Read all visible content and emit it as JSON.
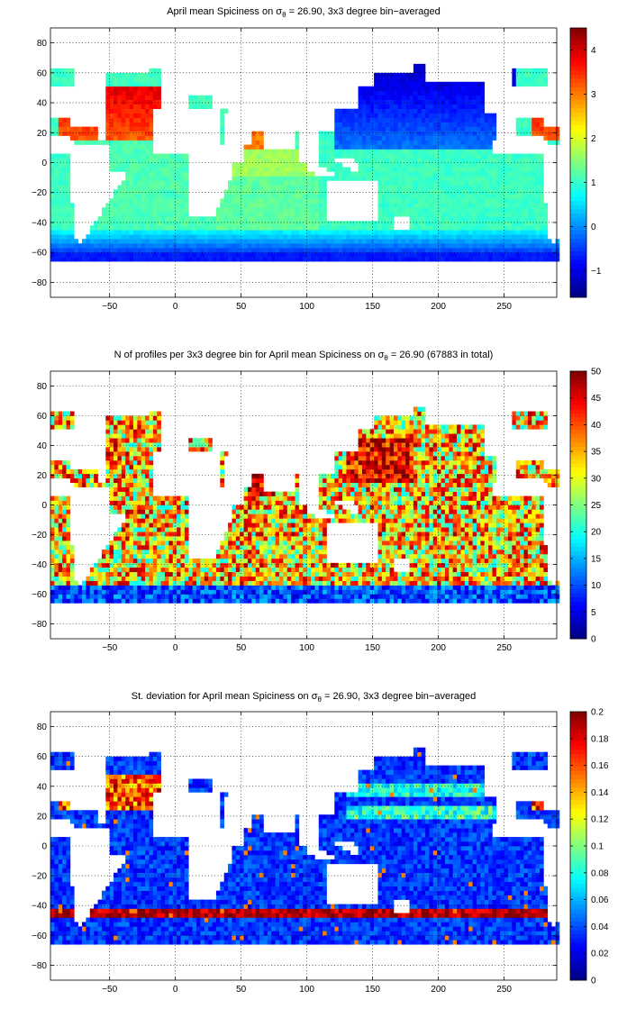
{
  "colormap": "jet",
  "colors": {
    "land": "#ffffff",
    "grid": "#000000",
    "frame": "#000000",
    "background": "#ffffff"
  },
  "chart_data": [
    {
      "type": "heatmap",
      "title_prefix": "April mean Spiciness on ",
      "title_symbol": "σ",
      "title_subscript": "θ",
      "title_suffix": " = 26.90, 3x3 degree bin−averaged",
      "xlim": [
        -95,
        290
      ],
      "ylim": [
        -90,
        90
      ],
      "xticks": [
        -50,
        0,
        50,
        100,
        150,
        200,
        250
      ],
      "yticks": [
        -80,
        -60,
        -40,
        -20,
        0,
        20,
        40,
        60,
        80
      ],
      "xtick_labels": [
        "−50",
        "0",
        "50",
        "100",
        "150",
        "200",
        "250"
      ],
      "ytick_labels": [
        "−80",
        "−60",
        "−40",
        "−20",
        "0",
        "20",
        "40",
        "60",
        "80"
      ],
      "grid": true,
      "bin_size_deg": 3,
      "colorbar": {
        "min": -1.6,
        "max": 4.5,
        "ticks": [
          -1,
          0,
          1,
          2,
          3,
          4
        ],
        "tick_labels": [
          "−1",
          "0",
          "1",
          "2",
          "3",
          "4"
        ]
      },
      "field": "spiciness"
    },
    {
      "type": "heatmap",
      "title_prefix": "N of profiles per 3x3 degree bin for April mean Spiciness on ",
      "title_symbol": "σ",
      "title_subscript": "θ",
      "title_suffix": " = 26.90 (67883 in total)",
      "xlim": [
        -95,
        290
      ],
      "ylim": [
        -90,
        90
      ],
      "xticks": [
        -50,
        0,
        50,
        100,
        150,
        200,
        250
      ],
      "yticks": [
        -80,
        -60,
        -40,
        -20,
        0,
        20,
        40,
        60,
        80
      ],
      "xtick_labels": [
        "−50",
        "0",
        "50",
        "100",
        "150",
        "200",
        "250"
      ],
      "ytick_labels": [
        "−80",
        "−60",
        "−40",
        "−20",
        "0",
        "20",
        "40",
        "60",
        "80"
      ],
      "grid": true,
      "bin_size_deg": 3,
      "colorbar": {
        "min": 0,
        "max": 50,
        "ticks": [
          0,
          5,
          10,
          15,
          20,
          25,
          30,
          35,
          40,
          45,
          50
        ],
        "tick_labels": [
          "0",
          "5",
          "10",
          "15",
          "20",
          "25",
          "30",
          "35",
          "40",
          "45",
          "50"
        ]
      },
      "field": "count"
    },
    {
      "type": "heatmap",
      "title_prefix": "St. deviation for April mean Spiciness on ",
      "title_symbol": "σ",
      "title_subscript": "θ",
      "title_suffix": " = 26.90, 3x3 degree bin−averaged",
      "xlim": [
        -95,
        290
      ],
      "ylim": [
        -90,
        90
      ],
      "xticks": [
        -50,
        0,
        50,
        100,
        150,
        200,
        250
      ],
      "yticks": [
        -80,
        -60,
        -40,
        -20,
        0,
        20,
        40,
        60,
        80
      ],
      "xtick_labels": [
        "−50",
        "0",
        "50",
        "100",
        "150",
        "200",
        "250"
      ],
      "ytick_labels": [
        "−80",
        "−60",
        "−40",
        "−20",
        "0",
        "20",
        "40",
        "60",
        "80"
      ],
      "grid": true,
      "bin_size_deg": 3,
      "colorbar": {
        "min": 0,
        "max": 0.2,
        "ticks": [
          0,
          0.02,
          0.04,
          0.06,
          0.08,
          0.1,
          0.12,
          0.14,
          0.16,
          0.18,
          0.2
        ],
        "tick_labels": [
          "0",
          "0.02",
          "0.04",
          "0.06",
          "0.08",
          "0.1",
          "0.12",
          "0.14",
          "0.16",
          "0.18",
          "0.2"
        ]
      },
      "field": "stdev"
    }
  ]
}
